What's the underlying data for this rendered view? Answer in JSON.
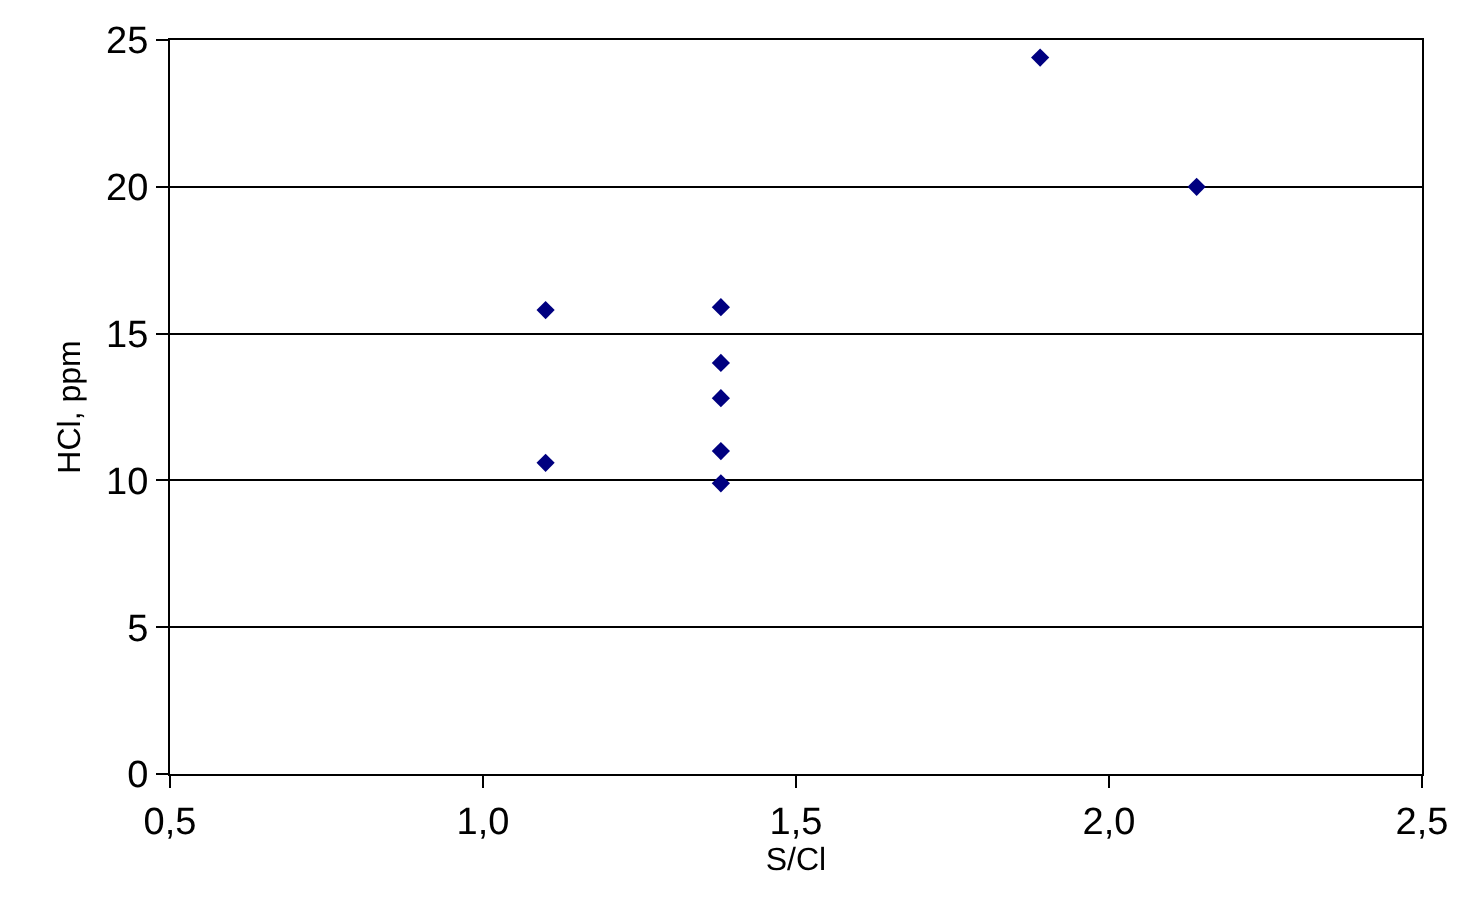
{
  "chart_data": {
    "type": "scatter",
    "xlabel": "S/Cl",
    "ylabel": "HCl, ppm",
    "x": [
      1.1,
      1.1,
      1.38,
      1.38,
      1.38,
      1.38,
      1.38,
      1.89,
      2.14
    ],
    "values": [
      15.8,
      10.6,
      15.9,
      14.0,
      12.8,
      11.0,
      9.9,
      24.4,
      20.0
    ],
    "color": "#000080",
    "marker": "diamond",
    "xlim": [
      0.5,
      2.5
    ],
    "xticks": [
      {
        "value": 0.5,
        "label": "0,5"
      },
      {
        "value": 1.0,
        "label": "1,0"
      },
      {
        "value": 1.5,
        "label": "1,5"
      },
      {
        "value": 2.0,
        "label": "2,0"
      },
      {
        "value": 2.5,
        "label": "2,5"
      }
    ],
    "ylim": [
      0,
      25
    ],
    "yticks": [
      0,
      5,
      10,
      15,
      20,
      25
    ],
    "grid": "y"
  }
}
